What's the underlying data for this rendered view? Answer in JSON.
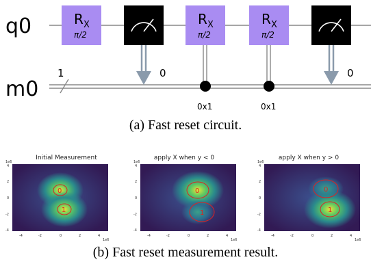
{
  "circuit": {
    "qubit_label": "q0",
    "classical_label": "m0",
    "bus_width": "1",
    "gates": [
      {
        "name": "R",
        "sub": "X",
        "param": "π/2"
      },
      {
        "name": "R",
        "sub": "X",
        "param": "π/2"
      },
      {
        "name": "R",
        "sub": "X",
        "param": "π/2"
      }
    ],
    "measure_bits": [
      "0",
      "0"
    ],
    "conditions": [
      "0x1",
      "0x1"
    ],
    "colors": {
      "rx_gate": "#a98cf2",
      "measure_gate": "#000000",
      "wire": "#888888",
      "arrow": "#8a9aab"
    }
  },
  "caption_a": "(a) Fast reset circuit.",
  "caption_b": "(b) Fast reset measurement result.",
  "panels": [
    {
      "title": "Initial Measurement",
      "offset_label": "1e6",
      "xlabel_scale": "1e6",
      "x_ticks": [
        "-4",
        "-2",
        "0",
        "2",
        "4"
      ],
      "y_ticks": [
        "4",
        "2",
        "0",
        "-2",
        "-4"
      ],
      "cluster_labels": [
        "0",
        "1"
      ]
    },
    {
      "title": "apply X when y < 0",
      "offset_label": "1e6",
      "xlabel_scale": "1e6",
      "x_ticks": [
        "-4",
        "-2",
        "0",
        "2",
        "4"
      ],
      "y_ticks": [
        "4",
        "2",
        "0",
        "-2",
        "-4"
      ],
      "cluster_labels": [
        "0",
        "1"
      ]
    },
    {
      "title": "apply X when y > 0",
      "offset_label": "1e6",
      "xlabel_scale": "1e6",
      "x_ticks": [
        "-4",
        "-2",
        "0",
        "2",
        "4"
      ],
      "y_ticks": [
        "4",
        "2",
        "0",
        "-2",
        "-4"
      ],
      "cluster_labels": [
        "0",
        "1"
      ]
    }
  ]
}
